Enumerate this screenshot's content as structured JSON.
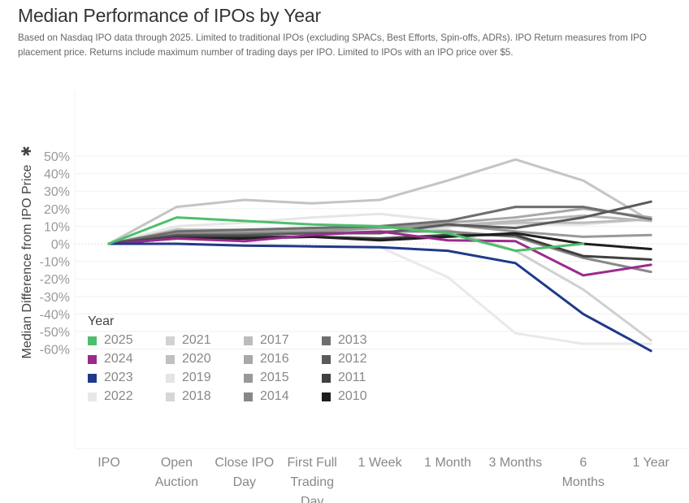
{
  "header": {
    "title": "Median Performance of IPOs by Year",
    "subtitle": "Based on Nasdaq IPO data through 2025. Limited to traditional IPOs (excluding SPACs, Best Efforts, Spin-offs, ADRs). IPO Return measures from IPO placement price. Returns include maximum number of trading days per IPO. Limited to IPOs with an IPO price over $5."
  },
  "chart_data": {
    "type": "line",
    "title": "Median Performance of IPOs by Year",
    "xlabel": "",
    "ylabel": "Median Difference from IPO Price",
    "ylabel_icon": "sort-icon",
    "categories": [
      "IPO",
      "Open Auction",
      "Close IPO Day",
      "First Full Trading Day",
      "1 Week",
      "1 Month",
      "3 Months",
      "6 Months",
      "1 Year"
    ],
    "category_lines": [
      [
        "IPO"
      ],
      [
        "Open",
        "Auction"
      ],
      [
        "Close IPO",
        "Day"
      ],
      [
        "First Full",
        "Trading",
        "Day"
      ],
      [
        "1 Week"
      ],
      [
        "1 Month"
      ],
      [
        "3 Months"
      ],
      [
        "6",
        "Months"
      ],
      [
        "1 Year"
      ]
    ],
    "ylim": [
      -60,
      50
    ],
    "yticks": [
      50,
      40,
      30,
      20,
      10,
      0,
      -10,
      -20,
      -30,
      -40,
      -50,
      -60
    ],
    "ytick_labels": [
      "50%",
      "40%",
      "30%",
      "20%",
      "10%",
      "0%",
      "-10%",
      "-20%",
      "-30%",
      "-40%",
      "-50%",
      "-60%"
    ],
    "grid": true,
    "legend_title": "Year",
    "legend_position": "bottom-left",
    "series": [
      {
        "name": "2021",
        "color": "#c4c4c4",
        "values": [
          0,
          21,
          25,
          23,
          25,
          36,
          48,
          36,
          13
        ]
      },
      {
        "name": "2019",
        "color": "#e6e6e6",
        "values": [
          0,
          10,
          12,
          15,
          17,
          13,
          11,
          11,
          14
        ]
      },
      {
        "name": "2022",
        "color": "#e9e9e9",
        "values": [
          0,
          9,
          1,
          -2,
          -2,
          -19,
          -51,
          -57,
          -57
        ]
      },
      {
        "name": "2018",
        "color": "#d0d0d0",
        "values": [
          0,
          8,
          7,
          8,
          10,
          8,
          -4,
          -26,
          -55
        ]
      },
      {
        "name": "2020",
        "color": "#b8b8b8",
        "values": [
          0,
          8,
          8,
          9,
          10,
          10,
          13,
          16,
          13
        ]
      },
      {
        "name": "2017",
        "color": "#bcbcbc",
        "values": [
          0,
          7,
          7,
          8,
          9,
          10,
          12,
          12,
          14
        ]
      },
      {
        "name": "2016",
        "color": "#a8a8a8",
        "values": [
          0,
          6,
          7,
          8,
          9,
          12,
          15,
          20,
          15
        ]
      },
      {
        "name": "2015",
        "color": "#999999",
        "values": [
          0,
          6,
          6,
          7,
          9,
          11,
          7,
          4,
          5
        ]
      },
      {
        "name": "2014",
        "color": "#888888",
        "values": [
          0,
          5,
          6,
          6,
          7,
          7,
          4,
          -8,
          -16
        ]
      },
      {
        "name": "2013",
        "color": "#6e6e6e",
        "values": [
          0,
          7,
          8,
          9,
          10,
          13,
          21,
          21,
          14
        ]
      },
      {
        "name": "2012",
        "color": "#5a5a5a",
        "values": [
          0,
          5,
          5,
          6,
          6,
          11,
          9,
          15,
          24
        ]
      },
      {
        "name": "2011",
        "color": "#404040",
        "values": [
          0,
          4,
          4,
          4,
          3,
          5,
          5,
          -7,
          -9
        ]
      },
      {
        "name": "2010",
        "color": "#1e1e1e",
        "values": [
          0,
          3,
          3,
          4,
          2,
          4,
          6,
          0,
          -3
        ]
      },
      {
        "name": "2024",
        "color": "#9b2a8f",
        "values": [
          0,
          3,
          1.5,
          5,
          7,
          2,
          1.5,
          -18,
          -12
        ]
      },
      {
        "name": "2023",
        "color": "#1f3a8a",
        "values": [
          0,
          0,
          -1,
          -1.5,
          -2,
          -4,
          -11,
          -40,
          -61
        ]
      },
      {
        "name": "2025",
        "color": "#4cbf6b",
        "values": [
          0,
          15,
          13,
          11,
          10,
          6,
          -4,
          0,
          null
        ]
      }
    ]
  },
  "legend": {
    "title": "Year",
    "items": [
      {
        "name": "2025",
        "color": "#4cbf6b"
      },
      {
        "name": "2021",
        "color": "#d2d2d2"
      },
      {
        "name": "2017",
        "color": "#bcbcbc"
      },
      {
        "name": "2013",
        "color": "#6e6e6e"
      },
      {
        "name": "2024",
        "color": "#9b2a8f"
      },
      {
        "name": "2020",
        "color": "#c0c0c0"
      },
      {
        "name": "2016",
        "color": "#a8a8a8"
      },
      {
        "name": "2012",
        "color": "#5a5a5a"
      },
      {
        "name": "2023",
        "color": "#1f3a8a"
      },
      {
        "name": "2019",
        "color": "#e4e4e4"
      },
      {
        "name": "2015",
        "color": "#999999"
      },
      {
        "name": "2011",
        "color": "#404040"
      },
      {
        "name": "2022",
        "color": "#e8e8e8"
      },
      {
        "name": "2018",
        "color": "#d6d6d6"
      },
      {
        "name": "2014",
        "color": "#888888"
      },
      {
        "name": "2010",
        "color": "#1e1e1e"
      }
    ]
  }
}
